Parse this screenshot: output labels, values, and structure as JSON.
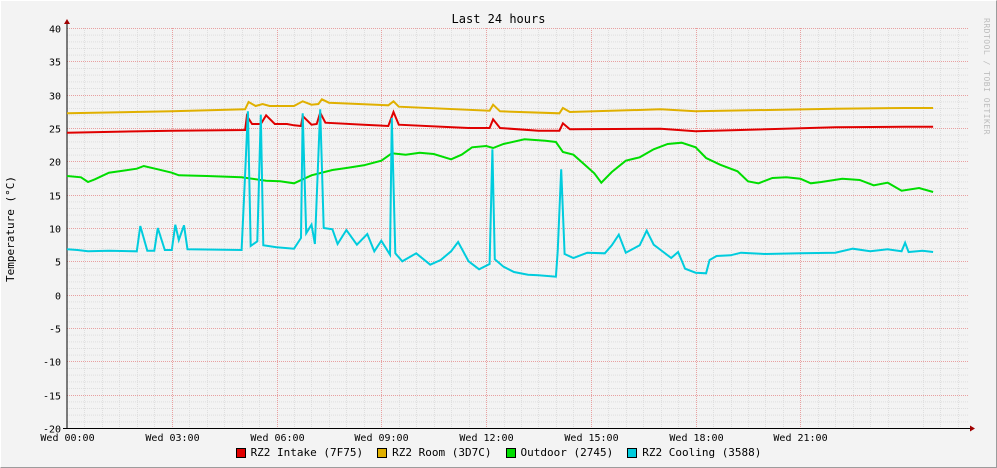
{
  "chart_data": {
    "type": "line",
    "title": "Last 24 hours",
    "ylabel": "Temperature (°C)",
    "watermark": "RRDTOOL / TOBI OETIKER",
    "ylim": [
      -20,
      40
    ],
    "yticks": [
      40,
      35,
      30,
      25,
      20,
      15,
      10,
      5,
      0,
      -5,
      -10,
      -15,
      -20
    ],
    "xlim": [
      0,
      25.8
    ],
    "xticks": [
      {
        "x": 0,
        "label": "Wed 00:00"
      },
      {
        "x": 3,
        "label": "Wed 03:00"
      },
      {
        "x": 6,
        "label": "Wed 06:00"
      },
      {
        "x": 9,
        "label": "Wed 09:00"
      },
      {
        "x": 12,
        "label": "Wed 12:00"
      },
      {
        "x": 15,
        "label": "Wed 15:00"
      },
      {
        "x": 18,
        "label": "Wed 18:00"
      },
      {
        "x": 21,
        "label": "Wed 21:00"
      }
    ],
    "grid": true,
    "legend_position": "bottom",
    "series": [
      {
        "name": "RZ2 Intake (7F75)",
        "color": "#e00000",
        "points": [
          [
            0,
            24.3
          ],
          [
            3,
            24.6
          ],
          [
            5.1,
            24.7
          ],
          [
            5.15,
            26.8
          ],
          [
            5.3,
            25.6
          ],
          [
            5.55,
            25.6
          ],
          [
            5.7,
            26.9
          ],
          [
            5.95,
            25.6
          ],
          [
            6.3,
            25.6
          ],
          [
            6.5,
            25.4
          ],
          [
            6.7,
            25.3
          ],
          [
            6.75,
            26.8
          ],
          [
            7.0,
            25.5
          ],
          [
            7.15,
            25.6
          ],
          [
            7.25,
            27.3
          ],
          [
            7.4,
            25.8
          ],
          [
            8.5,
            25.5
          ],
          [
            9.2,
            25.3
          ],
          [
            9.35,
            27.4
          ],
          [
            9.5,
            25.5
          ],
          [
            11.5,
            25.0
          ],
          [
            12.1,
            25.0
          ],
          [
            12.2,
            26.3
          ],
          [
            12.4,
            25.0
          ],
          [
            13.5,
            24.6
          ],
          [
            14.1,
            24.6
          ],
          [
            14.2,
            25.7
          ],
          [
            14.4,
            24.8
          ],
          [
            17,
            24.9
          ],
          [
            18,
            24.5
          ],
          [
            22,
            25.1
          ],
          [
            24,
            25.2
          ],
          [
            24.8,
            25.2
          ]
        ]
      },
      {
        "name": "RZ2 Room (3D7C)",
        "color": "#e0b000",
        "points": [
          [
            0,
            27.2
          ],
          [
            3,
            27.5
          ],
          [
            5.1,
            27.8
          ],
          [
            5.2,
            28.9
          ],
          [
            5.4,
            28.3
          ],
          [
            5.6,
            28.6
          ],
          [
            5.8,
            28.3
          ],
          [
            6.5,
            28.3
          ],
          [
            6.75,
            29.0
          ],
          [
            7.0,
            28.5
          ],
          [
            7.2,
            28.6
          ],
          [
            7.3,
            29.3
          ],
          [
            7.5,
            28.8
          ],
          [
            9.2,
            28.4
          ],
          [
            9.35,
            29.0
          ],
          [
            9.5,
            28.2
          ],
          [
            12.1,
            27.6
          ],
          [
            12.2,
            28.5
          ],
          [
            12.4,
            27.5
          ],
          [
            14.1,
            27.2
          ],
          [
            14.2,
            28.0
          ],
          [
            14.4,
            27.4
          ],
          [
            17,
            27.8
          ],
          [
            18,
            27.5
          ],
          [
            22,
            27.9
          ],
          [
            24,
            28.0
          ],
          [
            24.8,
            28.0
          ]
        ]
      },
      {
        "name": "Outdoor (2745)",
        "color": "#00dd00",
        "points": [
          [
            0,
            17.8
          ],
          [
            0.4,
            17.6
          ],
          [
            0.6,
            16.9
          ],
          [
            0.8,
            17.3
          ],
          [
            1.2,
            18.3
          ],
          [
            2.0,
            18.9
          ],
          [
            2.2,
            19.3
          ],
          [
            2.6,
            18.8
          ],
          [
            3.0,
            18.3
          ],
          [
            3.2,
            17.9
          ],
          [
            4.0,
            17.8
          ],
          [
            5.0,
            17.6
          ],
          [
            5.7,
            17.1
          ],
          [
            6.1,
            17.0
          ],
          [
            6.5,
            16.7
          ],
          [
            7.0,
            17.9
          ],
          [
            7.6,
            18.7
          ],
          [
            8.0,
            19.0
          ],
          [
            8.5,
            19.4
          ],
          [
            9.0,
            20.1
          ],
          [
            9.3,
            21.2
          ],
          [
            9.7,
            21.0
          ],
          [
            10.1,
            21.3
          ],
          [
            10.5,
            21.1
          ],
          [
            11.0,
            20.3
          ],
          [
            11.3,
            21.0
          ],
          [
            11.6,
            22.1
          ],
          [
            12.0,
            22.3
          ],
          [
            12.2,
            22.0
          ],
          [
            12.5,
            22.6
          ],
          [
            13.1,
            23.3
          ],
          [
            13.7,
            23.1
          ],
          [
            14.0,
            22.9
          ],
          [
            14.2,
            21.4
          ],
          [
            14.5,
            21.0
          ],
          [
            14.8,
            19.6
          ],
          [
            15.1,
            18.2
          ],
          [
            15.3,
            16.8
          ],
          [
            15.6,
            18.4
          ],
          [
            16.0,
            20.1
          ],
          [
            16.4,
            20.6
          ],
          [
            16.8,
            21.8
          ],
          [
            17.2,
            22.6
          ],
          [
            17.6,
            22.8
          ],
          [
            18.0,
            22.1
          ],
          [
            18.3,
            20.5
          ],
          [
            18.7,
            19.5
          ],
          [
            19.2,
            18.5
          ],
          [
            19.5,
            17.0
          ],
          [
            19.8,
            16.7
          ],
          [
            20.2,
            17.5
          ],
          [
            20.6,
            17.6
          ],
          [
            21.0,
            17.4
          ],
          [
            21.3,
            16.7
          ],
          [
            21.6,
            16.9
          ],
          [
            22.2,
            17.4
          ],
          [
            22.7,
            17.2
          ],
          [
            23.1,
            16.4
          ],
          [
            23.5,
            16.8
          ],
          [
            23.9,
            15.6
          ],
          [
            24.4,
            16.0
          ],
          [
            24.8,
            15.4
          ]
        ]
      },
      {
        "name": "RZ2 Cooling (3588)",
        "color": "#00ccdd",
        "points": [
          [
            0,
            6.8
          ],
          [
            0.3,
            6.7
          ],
          [
            0.6,
            6.5
          ],
          [
            1.2,
            6.6
          ],
          [
            2.0,
            6.5
          ],
          [
            2.1,
            10.3
          ],
          [
            2.3,
            6.6
          ],
          [
            2.5,
            6.6
          ],
          [
            2.6,
            10.0
          ],
          [
            2.8,
            6.7
          ],
          [
            3.0,
            6.7
          ],
          [
            3.1,
            10.5
          ],
          [
            3.2,
            8.2
          ],
          [
            3.35,
            10.4
          ],
          [
            3.45,
            6.8
          ],
          [
            5.0,
            6.7
          ],
          [
            5.1,
            18.0
          ],
          [
            5.18,
            27.5
          ],
          [
            5.26,
            7.3
          ],
          [
            5.45,
            8.0
          ],
          [
            5.55,
            27.0
          ],
          [
            5.62,
            7.4
          ],
          [
            6.0,
            7.1
          ],
          [
            6.5,
            6.9
          ],
          [
            6.7,
            8.5
          ],
          [
            6.75,
            27.2
          ],
          [
            6.85,
            9.2
          ],
          [
            7.0,
            10.5
          ],
          [
            7.1,
            7.6
          ],
          [
            7.25,
            27.8
          ],
          [
            7.35,
            10.0
          ],
          [
            7.6,
            9.8
          ],
          [
            7.75,
            7.6
          ],
          [
            8.0,
            9.7
          ],
          [
            8.3,
            7.5
          ],
          [
            8.6,
            9.1
          ],
          [
            8.8,
            6.5
          ],
          [
            9.0,
            8.1
          ],
          [
            9.25,
            6.0
          ],
          [
            9.3,
            26.5
          ],
          [
            9.4,
            6.2
          ],
          [
            9.6,
            5.0
          ],
          [
            10.0,
            6.2
          ],
          [
            10.4,
            4.5
          ],
          [
            10.7,
            5.2
          ],
          [
            11.0,
            6.5
          ],
          [
            11.2,
            7.9
          ],
          [
            11.5,
            5.0
          ],
          [
            11.8,
            3.8
          ],
          [
            12.1,
            4.6
          ],
          [
            12.18,
            21.8
          ],
          [
            12.25,
            5.3
          ],
          [
            12.5,
            4.2
          ],
          [
            12.8,
            3.4
          ],
          [
            13.2,
            3.0
          ],
          [
            13.5,
            2.9
          ],
          [
            14.0,
            2.7
          ],
          [
            14.05,
            6.5
          ],
          [
            14.15,
            18.8
          ],
          [
            14.25,
            6.1
          ],
          [
            14.5,
            5.5
          ],
          [
            14.9,
            6.3
          ],
          [
            15.4,
            6.2
          ],
          [
            15.6,
            7.4
          ],
          [
            15.8,
            9.0
          ],
          [
            16.0,
            6.3
          ],
          [
            16.4,
            7.4
          ],
          [
            16.6,
            9.6
          ],
          [
            16.8,
            7.5
          ],
          [
            17.0,
            6.7
          ],
          [
            17.3,
            5.5
          ],
          [
            17.5,
            6.4
          ],
          [
            17.7,
            3.9
          ],
          [
            18.0,
            3.3
          ],
          [
            18.3,
            3.2
          ],
          [
            18.4,
            5.2
          ],
          [
            18.6,
            5.8
          ],
          [
            19.0,
            5.9
          ],
          [
            19.3,
            6.3
          ],
          [
            20.0,
            6.1
          ],
          [
            21.0,
            6.2
          ],
          [
            22.0,
            6.3
          ],
          [
            22.5,
            6.9
          ],
          [
            23.0,
            6.5
          ],
          [
            23.5,
            6.8
          ],
          [
            23.9,
            6.5
          ],
          [
            24.0,
            7.8
          ],
          [
            24.1,
            6.4
          ],
          [
            24.5,
            6.6
          ],
          [
            24.8,
            6.4
          ]
        ]
      }
    ]
  }
}
